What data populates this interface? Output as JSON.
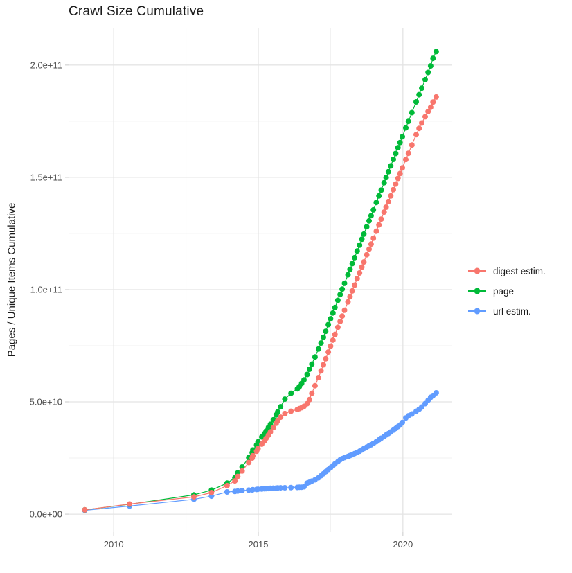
{
  "chart_data": {
    "type": "scatter",
    "title": "Crawl Size Cumulative",
    "xlabel": "",
    "ylabel": "Pages / Unique Items Cumulative",
    "grid": true,
    "legend_position": "right",
    "xlim": [
      2008.44,
      2021.68
    ],
    "ylim": [
      -8000000000.0,
      216300000000.0
    ],
    "x_ticks": [
      {
        "label": "2010",
        "value": 2010
      },
      {
        "label": "2015",
        "value": 2015
      },
      {
        "label": "2020",
        "value": 2020
      }
    ],
    "x_minor": [
      2012.5,
      2017.5
    ],
    "y_ticks": [
      {
        "label": "0.0e+00",
        "value": 0
      },
      {
        "label": "5.0e+10",
        "value": 50000000000.0
      },
      {
        "label": "1.0e+11",
        "value": 100000000000.0
      },
      {
        "label": "1.5e+11",
        "value": 150000000000.0
      },
      {
        "label": "2.0e+11",
        "value": 200000000000.0
      }
    ],
    "y_minor": [
      25000000000.0,
      75000000000.0,
      125000000000.0,
      175000000000.0
    ],
    "x": [
      2009.0,
      2010.55,
      2012.77,
      2013.38,
      2013.92,
      2014.19,
      2014.29,
      2014.44,
      2014.67,
      2014.79,
      2014.81,
      2014.94,
      2014.99,
      2015.12,
      2015.21,
      2015.27,
      2015.35,
      2015.42,
      2015.52,
      2015.62,
      2015.67,
      2015.77,
      2015.92,
      2016.13,
      2016.35,
      2016.42,
      2016.5,
      2016.58,
      2016.69,
      2016.77,
      2016.85,
      2016.96,
      2017.08,
      2017.17,
      2017.25,
      2017.33,
      2017.42,
      2017.5,
      2017.58,
      2017.65,
      2017.75,
      2017.83,
      2017.9,
      2017.98,
      2018.1,
      2018.17,
      2018.25,
      2018.33,
      2018.42,
      2018.5,
      2018.58,
      2018.65,
      2018.75,
      2018.83,
      2018.9,
      2018.98,
      2019.08,
      2019.17,
      2019.25,
      2019.35,
      2019.42,
      2019.5,
      2019.58,
      2019.67,
      2019.75,
      2019.83,
      2019.9,
      2019.98,
      2020.1,
      2020.19,
      2020.31,
      2020.46,
      2020.56,
      2020.65,
      2020.77,
      2020.87,
      2020.96,
      2021.04,
      2021.15
    ],
    "series": [
      {
        "name": "digest estim.",
        "color": "#F8766D",
        "values": [
          1900000000.0,
          4500000000.0,
          7700000000.0,
          9600000000.0,
          12700000000.0,
          14800000000.0,
          16800000000.0,
          19200000000.0,
          23000000000.0,
          25000000000.0,
          26000000000.0,
          28000000000.0,
          29200000000.0,
          31200000000.0,
          32600000000.0,
          33800000000.0,
          35200000000.0,
          36600000000.0,
          38500000000.0,
          40500000000.0,
          41600000000.0,
          43200000000.0,
          44800000000.0,
          45800000000.0,
          46600000000.0,
          47000000000.0,
          47400000000.0,
          48000000000.0,
          49200000000.0,
          51000000000.0,
          53800000000.0,
          57200000000.0,
          60800000000.0,
          63800000000.0,
          66500000000.0,
          69200000000.0,
          72200000000.0,
          74800000000.0,
          77500000000.0,
          80000000000.0,
          83200000000.0,
          85800000000.0,
          88200000000.0,
          90800000000.0,
          94500000000.0,
          96800000000.0,
          99400000000.0,
          102000000000.0,
          104900000000.0,
          107400000000.0,
          110000000000.0,
          112300000000.0,
          115500000000.0,
          118000000000.0,
          120300000000.0,
          122900000000.0,
          126000000000.0,
          128800000000.0,
          131400000000.0,
          134500000000.0,
          136700000000.0,
          139200000000.0,
          141700000000.0,
          144500000000.0,
          147000000000.0,
          149500000000.0,
          151700000000.0,
          154200000000.0,
          157900000000.0,
          160700000000.0,
          164400000000.0,
          169000000000.0,
          171800000000.0,
          174200000000.0,
          177000000000.0,
          179300000000.0,
          181200000000.0,
          183500000000.0,
          185800000000.0
        ]
      },
      {
        "name": "page",
        "color": "#00BA38",
        "values": [
          1900000000.0,
          4400000000.0,
          8600000000.0,
          10700000000.0,
          13800000000.0,
          16200000000.0,
          18400000000.0,
          21000000000.0,
          25200000000.0,
          27400000000.0,
          28600000000.0,
          30800000000.0,
          32200000000.0,
          34400000000.0,
          35800000000.0,
          37000000000.0,
          38600000000.0,
          40000000000.0,
          42000000000.0,
          44200000000.0,
          45500000000.0,
          47800000000.0,
          51200000000.0,
          53800000000.0,
          55800000000.0,
          56800000000.0,
          58200000000.0,
          59800000000.0,
          62200000000.0,
          64500000000.0,
          66800000000.0,
          70000000000.0,
          73500000000.0,
          76200000000.0,
          78800000000.0,
          81400000000.0,
          84400000000.0,
          87000000000.0,
          89600000000.0,
          92000000000.0,
          95200000000.0,
          97800000000.0,
          100200000000.0,
          102800000000.0,
          106600000000.0,
          109000000000.0,
          111600000000.0,
          114200000000.0,
          117200000000.0,
          119800000000.0,
          122400000000.0,
          124700000000.0,
          128000000000.0,
          130600000000.0,
          132900000000.0,
          135500000000.0,
          138800000000.0,
          141700000000.0,
          144300000000.0,
          147600000000.0,
          149900000000.0,
          152500000000.0,
          155100000000.0,
          158000000000.0,
          160600000000.0,
          163200000000.0,
          165500000000.0,
          168100000000.0,
          172000000000.0,
          174900000000.0,
          178800000000.0,
          183600000000.0,
          186800000000.0,
          189700000000.0,
          193500000000.0,
          196700000000.0,
          199600000000.0,
          203000000000.0,
          206000000000.0
        ]
      },
      {
        "name": "url estim.",
        "color": "#619CFF",
        "values": [
          1700000000.0,
          3600000000.0,
          6600000000.0,
          8000000000.0,
          9900000000.0,
          10100000000.0,
          10300000000.0,
          10500000000.0,
          10700000000.0,
          10800000000.0,
          10900000000.0,
          11000000000.0,
          11100000000.0,
          11200000000.0,
          11300000000.0,
          11350000000.0,
          11400000000.0,
          11500000000.0,
          11550000000.0,
          11600000000.0,
          11650000000.0,
          11700000000.0,
          11750000000.0,
          11800000000.0,
          11900000000.0,
          11950000000.0,
          12000000000.0,
          12200000000.0,
          13800000000.0,
          14200000000.0,
          14700000000.0,
          15300000000.0,
          16200000000.0,
          17100000000.0,
          18000000000.0,
          18900000000.0,
          19900000000.0,
          20700000000.0,
          21600000000.0,
          22400000000.0,
          23400000000.0,
          24200000000.0,
          24700000000.0,
          25200000000.0,
          25700000000.0,
          26100000000.0,
          26500000000.0,
          27000000000.0,
          27500000000.0,
          28000000000.0,
          28600000000.0,
          29200000000.0,
          29900000000.0,
          30400000000.0,
          30900000000.0,
          31500000000.0,
          32300000000.0,
          33100000000.0,
          33800000000.0,
          34600000000.0,
          35300000000.0,
          35900000000.0,
          36600000000.0,
          37400000000.0,
          38200000000.0,
          39000000000.0,
          39700000000.0,
          40800000000.0,
          42800000000.0,
          43800000000.0,
          44600000000.0,
          45800000000.0,
          46700000000.0,
          47700000000.0,
          49200000000.0,
          50700000000.0,
          52000000000.0,
          52800000000.0,
          54000000000.0
        ]
      }
    ]
  }
}
